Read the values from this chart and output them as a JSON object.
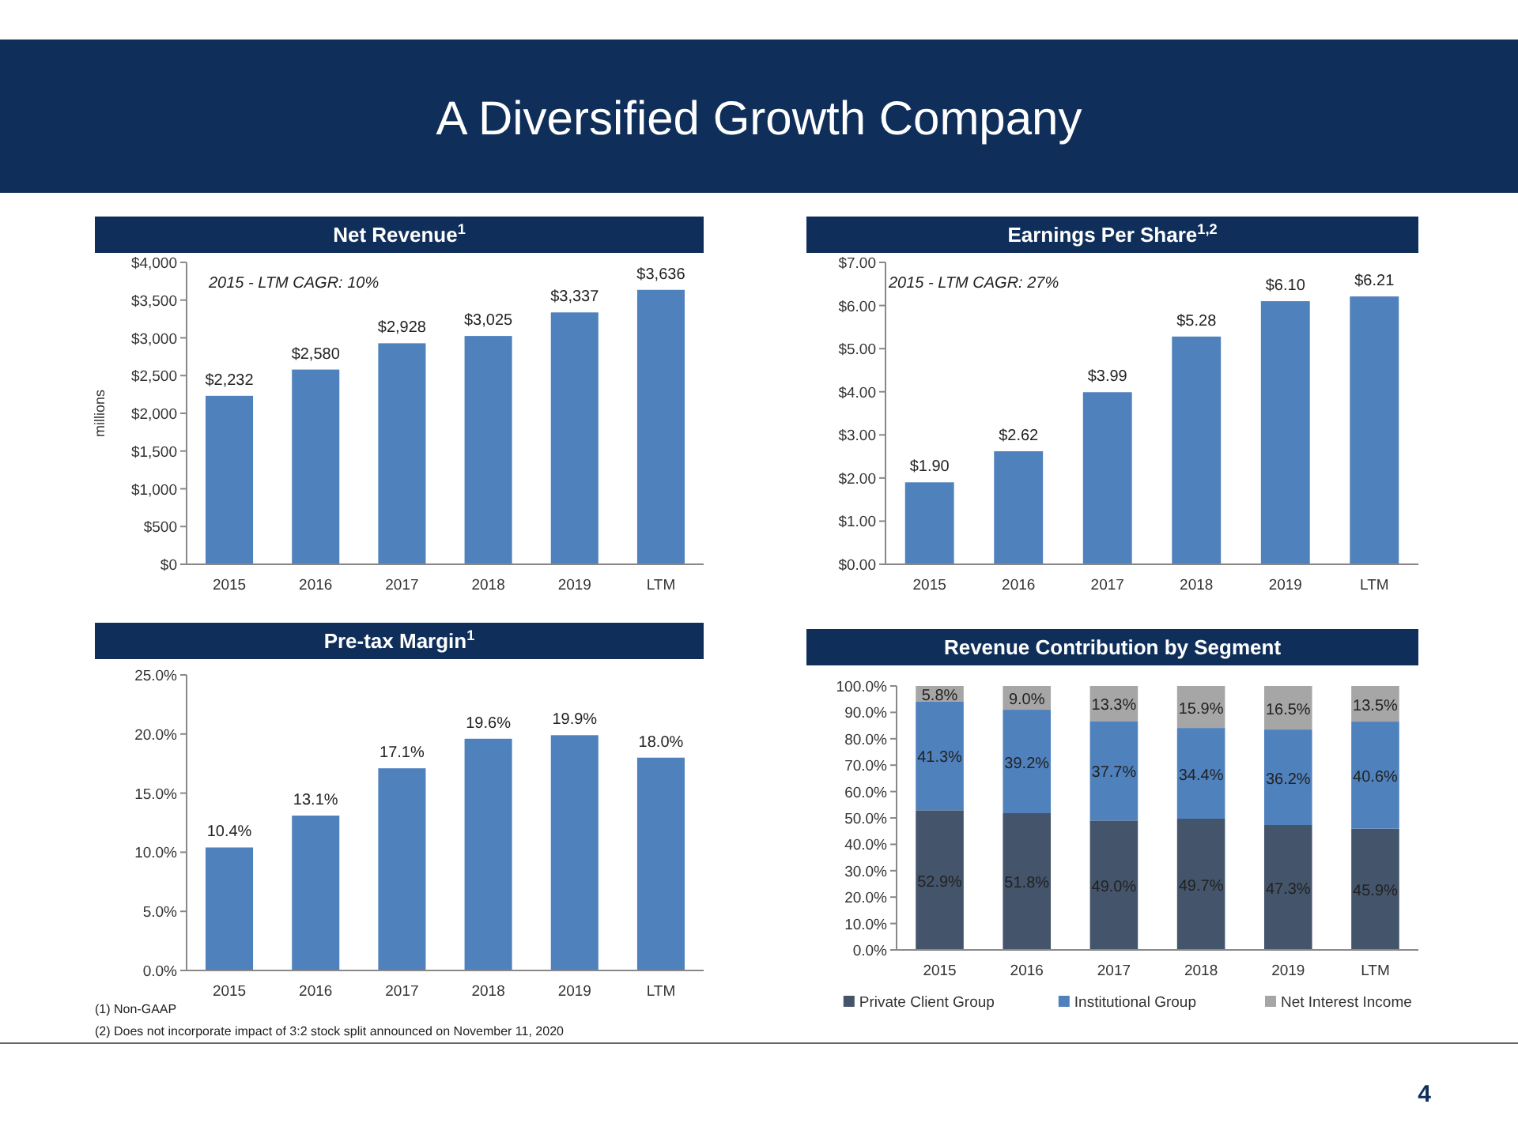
{
  "chart_data": [
    {
      "type": "bar",
      "title": "Net Revenue$^{1}$",
      "ylabel": "millions",
      "categories": [
        "2015",
        "2016",
        "2017",
        "2018",
        "2019",
        "LTM"
      ],
      "values": [
        2232,
        2580,
        2928,
        3025,
        3337,
        3636
      ],
      "value_labels": [
        "$2,232",
        "$2,580",
        "$2,928",
        "$3,025",
        "$3,337",
        "$3,636"
      ],
      "color": "#4f81bd",
      "ylim": [
        0,
        4000
      ],
      "yticks": [
        {
          "value": 0,
          "label": "$0"
        },
        {
          "value": 500,
          "label": "$500"
        },
        {
          "value": 1000,
          "label": "$1,000"
        },
        {
          "value": 1500,
          "label": "$1,500"
        },
        {
          "value": 2000,
          "label": "$2,000"
        },
        {
          "value": 2500,
          "label": "$2,500"
        },
        {
          "value": 3000,
          "label": "$3,000"
        },
        {
          "value": 3500,
          "label": "$3,500"
        },
        {
          "value": 4000,
          "label": "$4,000"
        }
      ],
      "annotations": [
        "2015 - LTM CAGR:  10%",
        "A Diversified Growth Company",
        "4"
      ]
    },
    {
      "type": "bar",
      "title": "Earnings Per Share$^{1,2}$",
      "categories": [
        "2015",
        "2016",
        "2017",
        "2018",
        "2019",
        "LTM"
      ],
      "values": [
        1.9,
        2.62,
        3.99,
        5.28,
        6.1,
        6.21
      ],
      "value_labels": [
        "$1.90",
        "$2.62",
        "$3.99",
        "$5.28",
        "$6.10",
        "$6.21"
      ],
      "color": "#4f81bd",
      "ylim": [
        0,
        7
      ],
      "yticks": [
        {
          "value": 0,
          "label": "$0.00"
        },
        {
          "value": 1,
          "label": "$1.00"
        },
        {
          "value": 2,
          "label": "$2.00"
        },
        {
          "value": 3,
          "label": "$3.00"
        },
        {
          "value": 4,
          "label": "$4.00"
        },
        {
          "value": 5,
          "label": "$5.00"
        },
        {
          "value": 6,
          "label": "$6.00"
        },
        {
          "value": 7,
          "label": "$7.00"
        }
      ],
      "annotations": [
        "2015 - LTM CAGR:  27%"
      ]
    },
    {
      "type": "bar",
      "title": "Pre-tax Margin$^{1}$",
      "categories": [
        "2015",
        "2016",
        "2017",
        "2018",
        "2019",
        "LTM"
      ],
      "values": [
        10.4,
        13.1,
        17.1,
        19.6,
        19.9,
        18.0
      ],
      "value_labels": [
        "10.4%",
        "13.1%",
        "17.1%",
        "19.6%",
        "19.9%",
        "18.0%"
      ],
      "color": "#4f81bd",
      "ylim": [
        0,
        25
      ],
      "yticks": [
        {
          "value": 0,
          "label": "0.0%"
        },
        {
          "value": 5,
          "label": "5.0%"
        },
        {
          "value": 10,
          "label": "10.0%"
        },
        {
          "value": 15,
          "label": "15.0%"
        },
        {
          "value": 20,
          "label": "20.0%"
        },
        {
          "value": 25,
          "label": "25.0%"
        }
      ],
      "annotations": [
        "(1) Non-GAAP",
        "(2)  Does not incorporate impact of 3:2 stock split announced on November 11, 2020"
      ]
    },
    {
      "type": "bar",
      "title": "Revenue Contribution by Segment",
      "categories": [
        "2015",
        "2016",
        "2017",
        "2018",
        "2019",
        "LTM"
      ],
      "stacked": true,
      "legend": "bottom",
      "ylim": [
        0,
        100
      ],
      "yticks": [
        {
          "value": 0,
          "label": "0.0%"
        },
        {
          "value": 10,
          "label": "10.0%"
        },
        {
          "value": 20,
          "label": "20.0%"
        },
        {
          "value": 30,
          "label": "30.0%"
        },
        {
          "value": 40,
          "label": "40.0%"
        },
        {
          "value": 50,
          "label": "50.0%"
        },
        {
          "value": 60,
          "label": "60.0%"
        },
        {
          "value": 70,
          "label": "70.0%"
        },
        {
          "value": 80,
          "label": "80.0%"
        },
        {
          "value": 90,
          "label": "90.0%"
        },
        {
          "value": 100,
          "label": "100.0%"
        }
      ],
      "series": [
        {
          "name": "Private Client Group",
          "color": "#44546a",
          "values": [
            52.9,
            51.8,
            49.0,
            49.7,
            47.3,
            45.9
          ],
          "value_labels": [
            "52.9%",
            "51.8%",
            "49.0%",
            "49.7%",
            "47.3%",
            "45.9%"
          ]
        },
        {
          "name": "Institutional Group",
          "color": "#4f81bd",
          "values": [
            41.3,
            39.2,
            37.7,
            34.4,
            36.2,
            40.6
          ],
          "value_labels": [
            "41.3%",
            "39.2%",
            "37.7%",
            "34.4%",
            "36.2%",
            "40.6%"
          ]
        },
        {
          "name": "Net Interest Income",
          "color": "#a6a6a6",
          "values": [
            5.8,
            9.0,
            13.3,
            15.9,
            16.5,
            13.5
          ],
          "value_labels": [
            "5.8%",
            "9.0%",
            "13.3%",
            "15.9%",
            "16.5%",
            "13.5%"
          ]
        }
      ]
    }
  ]
}
